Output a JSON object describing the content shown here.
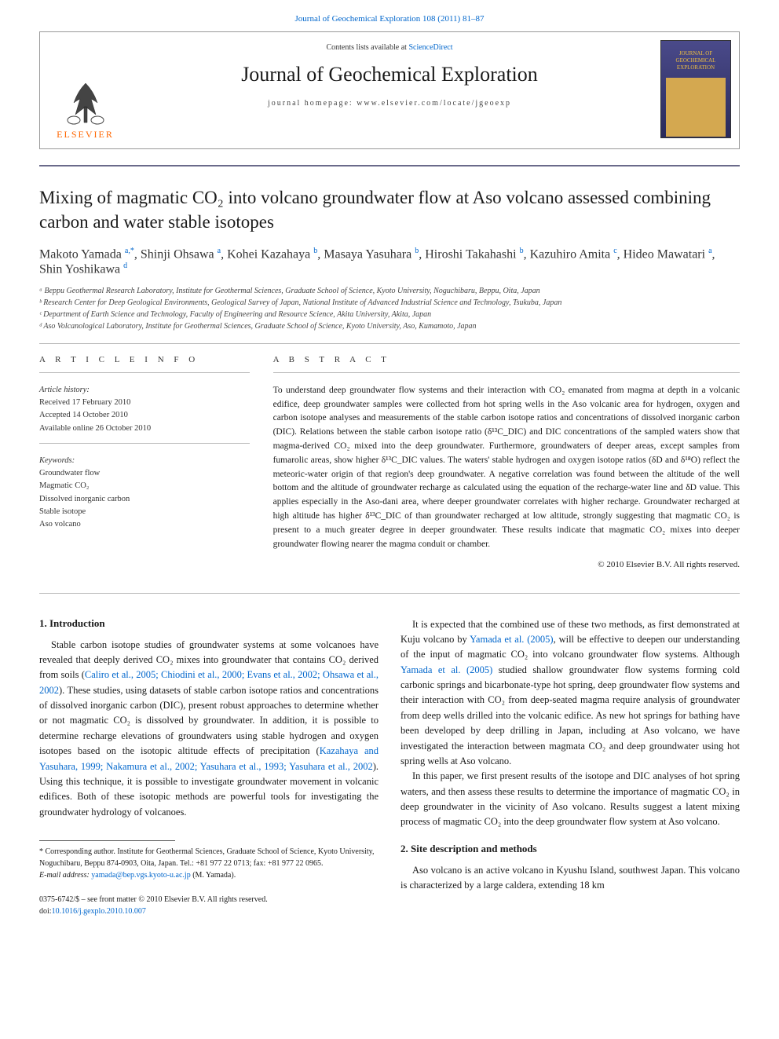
{
  "topLink": "Journal of Geochemical Exploration 108 (2011) 81–87",
  "contentsText": "Contents lists available at ",
  "scienceDirect": "ScienceDirect",
  "journalName": "Journal of Geochemical Exploration",
  "homepageLabel": "journal homepage: ",
  "homepageUrl": "www.elsevier.com/locate/jgeoexp",
  "elsevierText": "ELSEVIER",
  "coverTitle": "JOURNAL OF GEOCHEMICAL EXPLORATION",
  "title": "Mixing of magmatic CO₂ into volcano groundwater flow at Aso volcano assessed combining carbon and water stable isotopes",
  "authorsHtml": "Makoto Yamada <sup>a,*</sup>, Shinji Ohsawa <sup>a</sup>, Kohei Kazahaya <sup>b</sup>, Masaya Yasuhara <sup>b</sup>, Hiroshi Takahashi <sup>b</sup>, Kazuhiro Amita <sup>c</sup>, Hideo Mawatari <sup>a</sup>, Shin Yoshikawa <sup>d</sup>",
  "affiliations": [
    "ᵃ Beppu Geothermal Research Laboratory, Institute for Geothermal Sciences, Graduate School of Science, Kyoto University, Noguchibaru, Beppu, Oita, Japan",
    "ᵇ Research Center for Deep Geological Environments, Geological Survey of Japan, National Institute of Advanced Industrial Science and Technology, Tsukuba, Japan",
    "ᶜ Department of Earth Science and Technology, Faculty of Engineering and Resource Science, Akita University, Akita, Japan",
    "ᵈ Aso Volcanological Laboratory, Institute for Geothermal Sciences, Graduate School of Science, Kyoto University, Aso, Kumamoto, Japan"
  ],
  "articleInfoLabel": "A R T I C L E   I N F O",
  "abstractLabel": "A B S T R A C T",
  "historyLabel": "Article history:",
  "history": [
    "Received 17 February 2010",
    "Accepted 14 October 2010",
    "Available online 26 October 2010"
  ],
  "keywordsLabel": "Keywords:",
  "keywords": [
    "Groundwater flow",
    "Magmatic CO₂",
    "Dissolved inorganic carbon",
    "Stable isotope",
    "Aso volcano"
  ],
  "abstract": "To understand deep groundwater flow systems and their interaction with CO₂ emanated from magma at depth in a volcanic edifice, deep groundwater samples were collected from hot spring wells in the Aso volcanic area for hydrogen, oxygen and carbon isotope analyses and measurements of the stable carbon isotope ratios and concentrations of dissolved inorganic carbon (DIC). Relations between the stable carbon isotope ratio (δ¹³C_DIC) and DIC concentrations of the sampled waters show that magma-derived CO₂ mixed into the deep groundwater. Furthermore, groundwaters of deeper areas, except samples from fumarolic areas, show higher δ¹³C_DIC values. The waters' stable hydrogen and oxygen isotope ratios (δD and δ¹⁸O) reflect the meteoric-water origin of that region's deep groundwater. A negative correlation was found between the altitude of the well bottom and the altitude of groundwater recharge as calculated using the equation of the recharge-water line and δD value. This applies especially in the Aso-dani area, where deeper groundwater correlates with higher recharge. Groundwater recharged at high altitude has higher δ¹³C_DIC of than groundwater recharged at low altitude, strongly suggesting that magmatic CO₂ is present to a much greater degree in deeper groundwater. These results indicate that magmatic CO₂ mixes into deeper groundwater flowing nearer the magma conduit or chamber.",
  "copyright": "© 2010 Elsevier B.V. All rights reserved.",
  "introHeading": "1. Introduction",
  "introP1a": "Stable carbon isotope studies of groundwater systems at some volcanoes have revealed that deeply derived CO₂ mixes into groundwater that contains CO₂ derived from soils (",
  "introP1ref": "Caliro et al., 2005; Chiodini et al., 2000; Evans et al., 2002; Ohsawa et al., 2002",
  "introP1b": "). These studies, using datasets of stable carbon isotope ratios and concentrations of dissolved inorganic carbon (DIC), present robust approaches to determine whether or not magmatic CO₂ is dissolved by groundwater. In addition, it is possible to determine recharge elevations of groundwaters using stable hydrogen and oxygen isotopes based on the isotopic altitude effects of precipitation (",
  "introP1ref2": "Kazahaya and Yasuhara, 1999; Nakamura et al., 2002; Yasuhara et al., 1993; Yasuhara et al., 2002",
  "introP1c": "). Using this technique, it is possible to investigate groundwater movement in volcanic edifices. Both of these isotopic methods are powerful tools for investigating the groundwater hydrology of volcanoes.",
  "col2P1a": "It is expected that the combined use of these two methods, as first demonstrated at Kuju volcano by ",
  "col2P1ref": "Yamada et al. (2005)",
  "col2P1b": ", will be effective to deepen our understanding of the input of magmatic CO₂ into volcano groundwater flow systems. Although ",
  "col2P1ref2": "Yamada et al. (2005)",
  "col2P1c": " studied shallow groundwater flow systems forming cold carbonic springs and bicarbonate-type hot spring, deep groundwater flow systems and their interaction with CO₂ from deep-seated magma require analysis of groundwater from deep wells drilled into the volcanic edifice. As new hot springs for bathing have been developed by deep drilling in Japan, including at Aso volcano, we have investigated the interaction between magmata CO₂ and deep groundwater using hot spring wells at Aso volcano.",
  "col2P2": "In this paper, we first present results of the isotope and DIC analyses of hot spring waters, and then assess these results to determine the importance of magmatic CO₂ in deep groundwater in the vicinity of Aso volcano. Results suggest a latent mixing process of magmatic CO₂ into the deep groundwater flow system at Aso volcano.",
  "siteHeading": "2. Site description and methods",
  "siteP1": "Aso volcano is an active volcano in Kyushu Island, southwest Japan. This volcano is characterized by a large caldera, extending 18 km",
  "corrNote": "* Corresponding author. Institute for Geothermal Sciences, Graduate School of Science, Kyoto University, Noguchibaru, Beppu 874-0903, Oita, Japan. Tel.: +81 977 22 0713; fax: +81 977 22 0965.",
  "emailLabel": "E-mail address: ",
  "email": "yamada@bep.vgs.kyoto-u.ac.jp",
  "emailSuffix": " (M. Yamada).",
  "frontMatter": "0375-6742/$ – see front matter © 2010 Elsevier B.V. All rights reserved.",
  "doiLabel": "doi:",
  "doi": "10.1016/j.gexplo.2010.10.007",
  "colors": {
    "link": "#0066cc",
    "divider": "#6a6a8a",
    "elsevier": "#ff6600"
  }
}
